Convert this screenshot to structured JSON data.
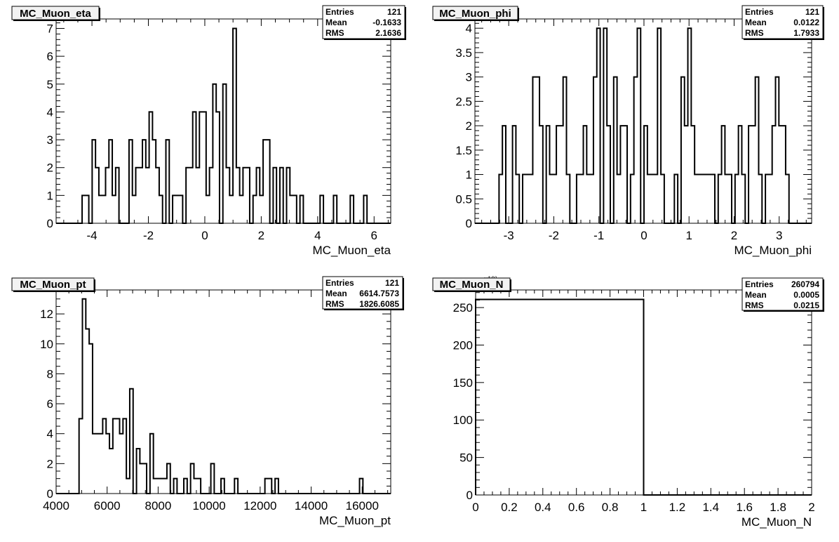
{
  "chart_data": [
    {
      "type": "bar",
      "title": "MC_Muon_eta",
      "xlabel": "MC_Muon_eta",
      "ylabel": "",
      "xlim": [
        -5.27,
        6.59
      ],
      "ylim": [
        0,
        7.34
      ],
      "grid": false,
      "legend": "top-right",
      "x_ticks": [
        -4,
        -2,
        0,
        2,
        4,
        6
      ],
      "x_tick_labels": [
        "-4",
        "-2",
        "0",
        "2",
        "4",
        "6"
      ],
      "x_minor": 4,
      "y_ticks": [
        0,
        1,
        2,
        3,
        4,
        5,
        6,
        7
      ],
      "y_tick_labels": [
        "0",
        "1",
        "2",
        "3",
        "4",
        "5",
        "6",
        "7"
      ],
      "y_minor": 5,
      "hist": {
        "start": -4.349,
        "bin_width": 0.1188,
        "values": [
          1,
          1,
          0,
          3,
          2,
          1,
          1,
          2,
          3,
          1,
          2,
          0,
          0,
          0,
          3,
          1,
          2,
          2,
          3,
          2,
          4,
          3,
          2,
          1,
          0,
          3,
          0,
          1,
          1,
          1,
          0,
          2,
          2,
          4,
          2,
          4,
          4,
          1,
          2,
          5,
          4,
          0,
          5,
          2,
          1,
          7,
          2,
          1,
          2,
          2,
          0,
          1,
          2,
          1,
          3,
          3,
          0,
          2,
          0,
          2,
          0,
          2,
          1,
          1,
          0,
          1,
          0,
          0,
          0,
          0,
          0,
          1,
          0,
          0,
          0,
          1,
          0,
          0,
          0,
          0,
          1,
          0,
          0,
          0,
          1
        ]
      },
      "stats": {
        "labels": [
          "Entries",
          "Mean",
          "RMS"
        ],
        "values": [
          "121",
          "-0.1633",
          "2.1636"
        ]
      }
    },
    {
      "type": "bar",
      "title": "MC_Muon_phi",
      "xlabel": "MC_Muon_phi",
      "ylabel": "",
      "xlim": [
        -3.75,
        3.72
      ],
      "ylim": [
        0,
        4.19
      ],
      "grid": false,
      "legend": "top-right",
      "x_ticks": [
        -3,
        -2,
        -1,
        0,
        1,
        2,
        3
      ],
      "x_tick_labels": [
        "-3",
        "-2",
        "-1",
        "0",
        "1",
        "2",
        "3"
      ],
      "x_minor": 5,
      "y_ticks": [
        0,
        0.5,
        1,
        1.5,
        2,
        2.5,
        3,
        3.5,
        4
      ],
      "y_tick_labels": [
        "0",
        "0.5",
        "1",
        "1.5",
        "2",
        "2.5",
        "3",
        "3.5",
        "4"
      ],
      "y_minor": 5,
      "hist": {
        "start": -3.215,
        "bin_width": 0.0748,
        "values": [
          1,
          2,
          0,
          0,
          2,
          1,
          0,
          1,
          1,
          1,
          3,
          3,
          2,
          0,
          2,
          1,
          1,
          2,
          2,
          3,
          1,
          0,
          0,
          1,
          1,
          2,
          1,
          1,
          3,
          4,
          0,
          4,
          2,
          0,
          3,
          1,
          2,
          2,
          0,
          1,
          3,
          4,
          0,
          2,
          1,
          1,
          1,
          4,
          1,
          0,
          0,
          0,
          1,
          0,
          3,
          2,
          4,
          2,
          1,
          1,
          1,
          1,
          1,
          1,
          0,
          1,
          2,
          1,
          1,
          0,
          1,
          2,
          1,
          0,
          2,
          2,
          3,
          1,
          0,
          1,
          1,
          2,
          3,
          2,
          2,
          1
        ]
      },
      "stats": {
        "labels": [
          "Entries",
          "Mean",
          "RMS"
        ],
        "values": [
          "121",
          "0.0122",
          "1.7933"
        ]
      }
    },
    {
      "type": "bar",
      "title": "MC_Muon_pt",
      "xlabel": "MC_Muon_pt",
      "ylabel": "",
      "xlim": [
        4000,
        17120
      ],
      "ylim": [
        0,
        13.6
      ],
      "grid": false,
      "legend": "top-right",
      "x_ticks": [
        4000,
        6000,
        8000,
        10000,
        12000,
        14000,
        16000
      ],
      "x_tick_labels": [
        "4000",
        "6000",
        "8000",
        "10000",
        "12000",
        "14000",
        "16000"
      ],
      "x_minor": 4,
      "y_ticks": [
        0,
        2,
        4,
        6,
        8,
        10,
        12
      ],
      "y_tick_labels": [
        "0",
        "2",
        "4",
        "6",
        "8",
        "10",
        "12"
      ],
      "y_minor": 4,
      "hist": {
        "start": 4899,
        "bin_width": 132.5,
        "values": [
          5,
          13,
          11,
          10,
          4,
          4,
          4,
          5,
          4,
          3,
          5,
          5,
          4,
          5,
          1,
          7,
          0,
          3,
          2,
          2,
          0,
          4,
          1,
          1,
          1,
          1,
          2,
          0,
          1,
          0,
          0,
          1,
          0,
          2,
          1,
          1,
          0,
          0,
          0,
          2,
          0,
          0,
          1,
          0,
          0,
          0,
          1,
          0,
          0,
          0,
          0,
          0,
          0,
          0,
          0,
          1,
          1,
          0,
          1,
          0,
          0,
          0,
          0,
          0,
          0,
          0,
          0,
          0,
          0,
          0,
          0,
          0,
          0,
          0,
          0,
          0,
          0,
          0,
          0,
          0,
          0,
          0,
          0,
          1
        ]
      },
      "stats": {
        "labels": [
          "Entries",
          "Mean",
          "RMS"
        ],
        "values": [
          "121",
          "6614.7573",
          "1826.6085"
        ]
      }
    },
    {
      "type": "bar",
      "title": "MC_Muon_N",
      "xlabel": "MC_Muon_N",
      "ylabel": "",
      "y_exponent": "×10³",
      "xlim": [
        0,
        2
      ],
      "ylim": [
        0,
        273.5
      ],
      "grid": false,
      "legend": "top-right",
      "x_ticks": [
        0,
        0.2,
        0.4,
        0.6,
        0.8,
        1,
        1.2,
        1.4,
        1.6,
        1.8,
        2
      ],
      "x_tick_labels": [
        "0",
        "0.2",
        "0.4",
        "0.6",
        "0.8",
        "1",
        "1.2",
        "1.4",
        "1.6",
        "1.8",
        "2"
      ],
      "x_minor": 4,
      "y_ticks": [
        0,
        50,
        100,
        150,
        200,
        250
      ],
      "y_tick_labels": [
        "0",
        "50",
        "100",
        "150",
        "200",
        "250"
      ],
      "y_minor": 5,
      "hist": {
        "start": 0,
        "bin_width": 1,
        "values": [
          260.8,
          0
        ]
      },
      "stats": {
        "labels": [
          "Entries",
          "Mean",
          "RMS"
        ],
        "values": [
          "260794",
          "0.0005",
          "0.0215"
        ]
      }
    }
  ]
}
